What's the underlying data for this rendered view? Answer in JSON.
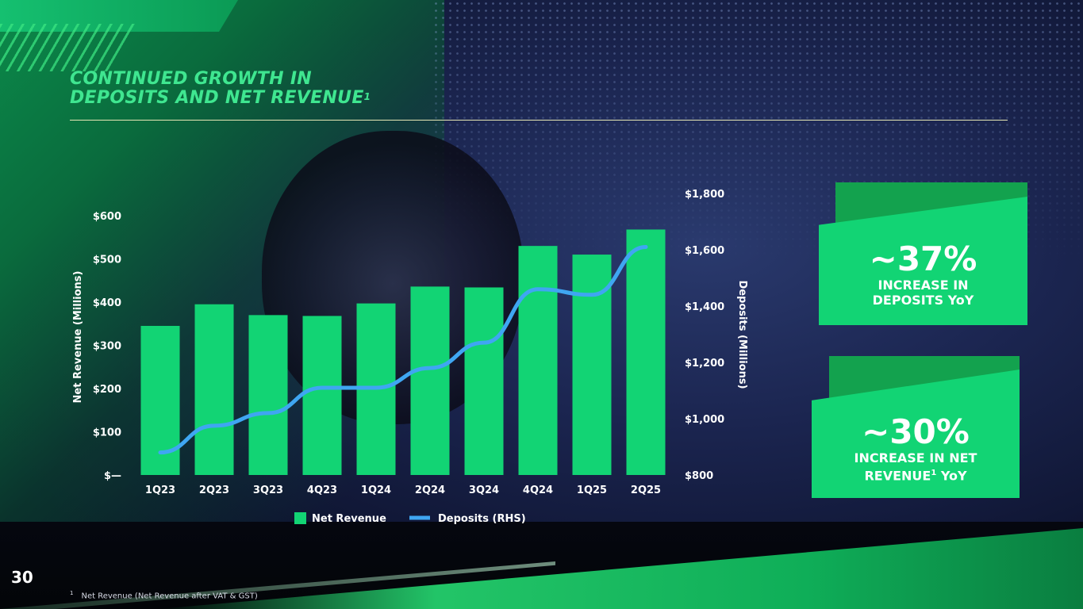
{
  "title": {
    "line1": "CONTINUED GROWTH IN",
    "line2": "DEPOSITS AND NET REVENUE",
    "footnote_marker": "1"
  },
  "stats": [
    {
      "value": "~37%",
      "line1": "INCREASE IN",
      "line2": "DEPOSITS YoY",
      "marker": ""
    },
    {
      "value": "~30%",
      "line1": "INCREASE IN NET",
      "line2": "REVENUE",
      "marker": "1",
      "suffix": " YoY"
    }
  ],
  "footnote": {
    "marker": "1",
    "text": "Net Revenue (Net Revenue after VAT & GST)"
  },
  "page_number": "30",
  "colors": {
    "bar": "#12d474",
    "line": "#3fa6f2",
    "title": "#3fe690",
    "stat_front": "#12d474",
    "stat_back": "#13a24e"
  },
  "chart_data": {
    "type": "bar",
    "categories": [
      "1Q23",
      "2Q23",
      "3Q23",
      "4Q23",
      "1Q24",
      "2Q24",
      "3Q24",
      "4Q24",
      "1Q25",
      "2Q25"
    ],
    "series": [
      {
        "name": "Net Revenue",
        "type": "bar",
        "axis": "left",
        "values": [
          345,
          395,
          370,
          368,
          397,
          436,
          434,
          530,
          510,
          568
        ]
      },
      {
        "name": "Deposits (RHS)",
        "type": "line",
        "axis": "right",
        "values": [
          880,
          975,
          1020,
          1110,
          1110,
          1180,
          1270,
          1460,
          1440,
          1610
        ]
      }
    ],
    "ylabel": "Net Revenue (Millions)",
    "ylabel_right": "Deposits (Millions)",
    "ylim": [
      0,
      600
    ],
    "ylim_right": [
      800,
      1800
    ],
    "yticks": [
      "$—",
      "$100",
      "$200",
      "$300",
      "$400",
      "$500",
      "$600"
    ],
    "yticks_right": [
      "$800",
      "$1,000",
      "$1,200",
      "$1,400",
      "$1,600",
      "$1,800"
    ],
    "legend_position": "bottom-center",
    "grid": false
  }
}
